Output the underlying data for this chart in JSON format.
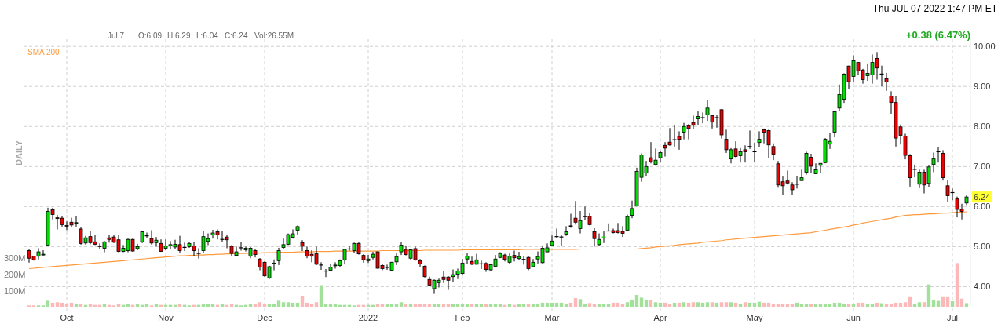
{
  "chart_data": {
    "type": "candlestick",
    "categories": [
      null,
      null,
      null,
      null,
      null,
      null,
      null,
      null,
      "Oct",
      null,
      null,
      null,
      null,
      null,
      null,
      null,
      null,
      null,
      null,
      null,
      null,
      null,
      null,
      null,
      null,
      null,
      null,
      null,
      null,
      "Nov",
      null,
      null,
      null,
      null,
      null,
      null,
      null,
      null,
      null,
      null,
      null,
      null,
      null,
      null,
      null,
      null,
      null,
      null,
      null,
      null,
      "Dec",
      null,
      null,
      null,
      null,
      null,
      null,
      null,
      null,
      null,
      null,
      null,
      null,
      null,
      null,
      null,
      null,
      null,
      null,
      null,
      null,
      null,
      "2022",
      null,
      null,
      null,
      null,
      null,
      null,
      null,
      null,
      null,
      null,
      null,
      null,
      null,
      null,
      null,
      null,
      null,
      null,
      null,
      "Feb",
      null,
      null,
      null,
      null,
      null,
      null,
      null,
      null,
      null,
      null,
      null,
      null,
      null,
      null,
      null,
      null,
      null,
      null,
      "Mar",
      null,
      null,
      null,
      null,
      null,
      null,
      null,
      null,
      null,
      null,
      null,
      null,
      null,
      null,
      null,
      null,
      null,
      null,
      null,
      null,
      null,
      null,
      "Apr",
      null,
      null,
      null,
      null,
      null,
      null,
      null,
      null,
      null,
      null,
      null,
      null,
      null,
      null,
      null,
      null,
      null,
      null,
      null,
      "May",
      null,
      null,
      null,
      null,
      null,
      null,
      null,
      null,
      null,
      null,
      null,
      null,
      null,
      null,
      null,
      null,
      null,
      null,
      null,
      null,
      "Jun",
      null,
      null,
      null,
      null,
      null,
      null,
      null,
      null,
      null,
      null,
      null,
      null,
      null,
      null,
      null,
      null,
      null,
      null,
      null,
      null,
      "Jul",
      null,
      null,
      null
    ],
    "colors": [
      "#ee0000",
      "#ee0000",
      "#00dd00",
      "#00dd00",
      "#00dd00",
      "#ee0000",
      "#ee0000",
      "#ee0000",
      "#ee0000",
      "#ee0000",
      "#00dd00",
      "#ee0000",
      "#00dd00",
      "#ee0000",
      "#ee0000",
      "#ee0000",
      "#00dd00",
      "#ee0000",
      "#ee0000",
      "#ee0000",
      "#00dd00",
      "#00dd00",
      "#ee0000",
      "#00dd00",
      "#00dd00",
      "#000000",
      "#ee0000",
      "#00dd00",
      "#ee0000",
      "#00dd00",
      "#00dd00",
      "#00dd00",
      "#ee0000",
      "#000000",
      "#00dd00",
      "#ee0000",
      "#000000",
      "#00dd00",
      "#00dd00",
      "#00dd00",
      "#ee0000",
      "#000000",
      "#ee0000",
      "#ee0000",
      "#00dd00",
      "#000000",
      "#00dd00",
      "#00dd00",
      "#ee0000",
      "#ee0000",
      "#ee0000",
      "#00dd00",
      "#00dd00",
      "#00dd00",
      "#00dd00",
      "#00dd00",
      "#00dd00",
      "#00dd00",
      "#ee0000",
      "#ee0000",
      "#ee0000",
      "#ee0000",
      "#000000",
      "#000000",
      "#00dd00",
      "#00dd00",
      "#00dd00",
      "#00dd00",
      "#000000",
      "#00dd00",
      "#ee0000",
      "#ee0000",
      "#00dd00",
      "#00dd00",
      "#ee0000",
      "#ee0000",
      "#000000",
      "#00dd00",
      "#00dd00",
      "#00dd00",
      "#ee0000",
      "#00dd00",
      "#ee0000",
      "#ee0000",
      "#ee0000",
      "#ee0000",
      "#00dd00",
      "#00dd00",
      "#ee0000",
      "#ee0000",
      "#00dd00",
      "#00dd00",
      "#00dd00",
      "#00dd00",
      "#ee0000",
      "#00dd00",
      "#000000",
      "#ee0000",
      "#00dd00",
      "#00dd00",
      "#00dd00",
      "#ee0000",
      "#00dd00",
      "#ee0000",
      "#00dd00",
      "#000000",
      "#ee0000",
      "#00dd00",
      "#00dd00",
      "#00dd00",
      "#00dd00",
      "#00dd00",
      "#000000",
      "#000000",
      "#00dd00",
      "#ee0000",
      "#ee0000",
      "#00dd00",
      "#000000",
      "#ee0000",
      "#ee0000",
      "#00dd00",
      "#00dd00",
      "#000000",
      "#ee0000",
      "#ee0000",
      "#ee0000",
      "#00dd00",
      "#00dd00",
      "#00dd00",
      "#00dd00",
      "#00dd00",
      "#ee0000",
      "#00dd00",
      "#00dd00",
      "#ee0000",
      "#ee0000",
      "#000000",
      "#ee0000",
      "#00dd00",
      "#ee0000",
      "#ee0000",
      "#00dd00",
      "#000000",
      "#00dd00",
      "#ee0000",
      "#000000",
      "#ee0000",
      "#ee0000",
      "#00dd00",
      "#ee0000",
      "#00dd00",
      "#ee0000",
      "#000000",
      "#000000",
      "#00dd00",
      "#ee0000",
      "#ee0000",
      "#ee0000",
      "#ee0000",
      "#ee0000",
      "#ee0000",
      "#ee0000",
      "#000000",
      "#00dd00",
      "#00dd00",
      "#ee0000",
      "#00dd00",
      "#00dd00",
      "#00dd00",
      "#00dd00",
      "#00dd00",
      "#00dd00",
      "#00dd00",
      "#ee0000",
      "#00dd00",
      "#ee0000",
      "#ee0000",
      "#00dd00",
      "#00dd00",
      "#ee0000",
      "#000000",
      "#ee0000",
      "#ee0000",
      "#ee0000",
      "#ee0000",
      "#ee0000",
      "#ee0000",
      "#000000",
      "#00dd00",
      "#ee0000",
      "#00dd00",
      "#00dd00",
      "#000000",
      "#ee0000",
      "#ee0000",
      "#000000",
      "#ee0000",
      "#ee0000",
      "#00dd00"
    ],
    "ohlc": [
      [
        4.9,
        4.94,
        4.6,
        4.71
      ],
      [
        4.76,
        4.77,
        4.65,
        4.67
      ],
      [
        4.76,
        4.96,
        4.68,
        4.87
      ],
      [
        4.8,
        4.91,
        4.78,
        4.81
      ],
      [
        5.04,
        5.97,
        5.01,
        5.88
      ],
      [
        5.92,
        5.97,
        5.68,
        5.8
      ],
      [
        5.72,
        5.79,
        5.43,
        5.71
      ],
      [
        5.71,
        5.76,
        5.5,
        5.55
      ],
      [
        5.53,
        5.63,
        5.41,
        5.52
      ],
      [
        5.61,
        5.72,
        5.48,
        5.54
      ],
      [
        5.59,
        5.77,
        5.5,
        5.6
      ],
      [
        5.44,
        5.48,
        5.05,
        5.08
      ],
      [
        5.09,
        5.27,
        5.05,
        5.22
      ],
      [
        5.25,
        5.38,
        5.06,
        5.1
      ],
      [
        5.12,
        5.3,
        5.04,
        5.06
      ],
      [
        5.02,
        5.08,
        4.94,
        5.01
      ],
      [
        4.96,
        5.14,
        4.86,
        5.12
      ],
      [
        5.22,
        5.3,
        5.1,
        5.18
      ],
      [
        5.24,
        5.29,
        5.09,
        5.11
      ],
      [
        5.17,
        5.3,
        4.86,
        4.88
      ],
      [
        4.88,
        5.04,
        4.86,
        4.96
      ],
      [
        4.9,
        5.2,
        4.86,
        5.18
      ],
      [
        5.18,
        5.2,
        4.87,
        4.89
      ],
      [
        4.95,
        5.07,
        4.91,
        5.0
      ],
      [
        5.12,
        5.4,
        5.09,
        5.37
      ],
      [
        5.27,
        5.35,
        5.22,
        5.27
      ],
      [
        5.2,
        5.41,
        5.05,
        5.09
      ],
      [
        5.1,
        5.24,
        5.0,
        5.16
      ],
      [
        5.08,
        5.18,
        4.87,
        4.88
      ],
      [
        4.96,
        5.18,
        4.91,
        5.02
      ],
      [
        5.02,
        5.14,
        4.94,
        5.05
      ],
      [
        4.99,
        5.17,
        4.94,
        5.06
      ],
      [
        5.05,
        5.27,
        4.84,
        4.9
      ],
      [
        4.98,
        5.1,
        4.89,
        4.98
      ],
      [
        5.0,
        5.12,
        4.97,
        5.08
      ],
      [
        5.02,
        5.12,
        4.76,
        4.9
      ],
      [
        4.83,
        4.96,
        4.7,
        4.83
      ],
      [
        4.9,
        5.39,
        4.84,
        5.25
      ],
      [
        5.13,
        5.33,
        5.04,
        5.2
      ],
      [
        5.29,
        5.42,
        5.2,
        5.34
      ],
      [
        5.37,
        5.43,
        5.18,
        5.29
      ],
      [
        5.18,
        5.4,
        5.12,
        5.18
      ],
      [
        5.24,
        5.3,
        4.96,
        5.17
      ],
      [
        5.01,
        5.04,
        4.76,
        4.83
      ],
      [
        4.78,
        5.0,
        4.76,
        4.87
      ],
      [
        4.97,
        5.12,
        4.9,
        4.97
      ],
      [
        4.92,
        5.0,
        4.88,
        4.96
      ],
      [
        4.76,
        4.99,
        4.71,
        4.96
      ],
      [
        4.9,
        4.94,
        4.73,
        4.8
      ],
      [
        4.69,
        4.71,
        4.41,
        4.49
      ],
      [
        4.61,
        4.63,
        4.25,
        4.27
      ],
      [
        4.22,
        4.52,
        4.19,
        4.5
      ],
      [
        4.58,
        4.68,
        4.41,
        4.59
      ],
      [
        4.65,
        4.97,
        4.54,
        4.9
      ],
      [
        4.98,
        5.2,
        4.93,
        5.05
      ],
      [
        5.06,
        5.33,
        5.04,
        5.3
      ],
      [
        5.23,
        5.43,
        5.2,
        5.32
      ],
      [
        5.41,
        5.53,
        5.3,
        5.5
      ],
      [
        5.1,
        5.16,
        4.89,
        5.01
      ],
      [
        4.9,
        5.0,
        4.71,
        4.76
      ],
      [
        4.81,
        4.91,
        4.61,
        4.76
      ],
      [
        4.82,
        5.0,
        4.54,
        4.56
      ],
      [
        4.54,
        4.61,
        4.42,
        4.54
      ],
      [
        4.39,
        4.44,
        4.24,
        4.39
      ],
      [
        4.41,
        4.57,
        4.39,
        4.49
      ],
      [
        4.53,
        4.61,
        4.45,
        4.54
      ],
      [
        4.53,
        4.68,
        4.5,
        4.65
      ],
      [
        4.67,
        4.94,
        4.57,
        4.93
      ],
      [
        4.94,
        5.02,
        4.9,
        4.94
      ],
      [
        4.9,
        5.1,
        4.84,
        5.08
      ],
      [
        5.08,
        5.12,
        4.8,
        4.82
      ],
      [
        4.78,
        4.81,
        4.6,
        4.67
      ],
      [
        4.65,
        4.79,
        4.59,
        4.69
      ],
      [
        4.73,
        4.87,
        4.68,
        4.81
      ],
      [
        4.87,
        4.88,
        4.45,
        4.46
      ],
      [
        4.53,
        4.57,
        4.41,
        4.45
      ],
      [
        4.48,
        4.55,
        4.42,
        4.48
      ],
      [
        4.41,
        4.62,
        4.38,
        4.61
      ],
      [
        4.62,
        4.83,
        4.54,
        4.75
      ],
      [
        4.87,
        5.12,
        4.79,
        5.04
      ],
      [
        4.93,
        5.03,
        4.78,
        4.8
      ],
      [
        4.71,
        4.94,
        4.68,
        4.92
      ],
      [
        4.95,
        5.0,
        4.65,
        4.67
      ],
      [
        4.65,
        4.69,
        4.5,
        4.57
      ],
      [
        4.51,
        4.53,
        4.23,
        4.25
      ],
      [
        4.18,
        4.25,
        4.01,
        4.04
      ],
      [
        3.95,
        4.18,
        3.82,
        4.16
      ],
      [
        4.1,
        4.2,
        3.98,
        4.16
      ],
      [
        4.24,
        4.38,
        4.09,
        4.18
      ],
      [
        4.24,
        4.26,
        3.92,
        4.16
      ],
      [
        4.25,
        4.43,
        4.12,
        4.3
      ],
      [
        4.31,
        4.45,
        4.19,
        4.39
      ],
      [
        4.33,
        4.69,
        4.3,
        4.59
      ],
      [
        4.69,
        4.83,
        4.57,
        4.76
      ],
      [
        4.63,
        4.75,
        4.54,
        4.56
      ],
      [
        4.56,
        4.82,
        4.55,
        4.67
      ],
      [
        4.57,
        4.65,
        4.44,
        4.57
      ],
      [
        4.58,
        4.61,
        4.37,
        4.43
      ],
      [
        4.42,
        4.57,
        4.4,
        4.55
      ],
      [
        4.51,
        4.79,
        4.48,
        4.69
      ],
      [
        4.73,
        4.86,
        4.71,
        4.83
      ],
      [
        4.79,
        4.82,
        4.63,
        4.68
      ],
      [
        4.61,
        4.83,
        4.56,
        4.76
      ],
      [
        4.78,
        4.9,
        4.63,
        4.72
      ],
      [
        4.7,
        4.87,
        4.66,
        4.75
      ],
      [
        4.68,
        4.76,
        4.55,
        4.68
      ],
      [
        4.73,
        4.76,
        4.41,
        4.45
      ],
      [
        4.5,
        4.69,
        4.48,
        4.61
      ],
      [
        4.69,
        4.88,
        4.58,
        4.75
      ],
      [
        4.6,
        5.03,
        4.58,
        4.96
      ],
      [
        4.87,
        5.08,
        4.86,
        4.97
      ],
      [
        5.03,
        5.28,
        5.02,
        5.14
      ],
      [
        5.25,
        5.45,
        5.22,
        5.25
      ],
      [
        5.24,
        5.29,
        5.03,
        5.24
      ],
      [
        5.31,
        5.51,
        5.27,
        5.37
      ],
      [
        5.52,
        5.82,
        5.47,
        5.51
      ],
      [
        5.71,
        6.14,
        5.55,
        5.61
      ],
      [
        5.45,
        5.89,
        5.33,
        5.65
      ],
      [
        5.75,
        6.0,
        5.66,
        5.75
      ],
      [
        5.76,
        5.85,
        5.53,
        5.55
      ],
      [
        5.37,
        5.46,
        5.0,
        5.2
      ],
      [
        5.05,
        5.33,
        5.02,
        5.18
      ],
      [
        5.24,
        5.4,
        5.09,
        5.24
      ],
      [
        5.39,
        5.58,
        5.39,
        5.39
      ],
      [
        5.4,
        5.45,
        5.33,
        5.35
      ],
      [
        5.4,
        5.59,
        5.33,
        5.35
      ],
      [
        5.38,
        5.51,
        5.24,
        5.33
      ],
      [
        5.41,
        5.8,
        5.39,
        5.75
      ],
      [
        5.78,
        6.15,
        5.71,
        5.95
      ],
      [
        6.02,
        6.97,
        6.0,
        6.88
      ],
      [
        6.73,
        7.33,
        6.62,
        7.29
      ],
      [
        6.84,
        7.14,
        6.77,
        7.0
      ],
      [
        7.22,
        7.61,
        7.08,
        7.12
      ],
      [
        7.05,
        7.45,
        7.02,
        7.16
      ],
      [
        7.22,
        7.4,
        7.1,
        7.35
      ],
      [
        7.53,
        7.61,
        7.25,
        7.46
      ],
      [
        7.61,
        7.96,
        7.52,
        7.54
      ],
      [
        7.67,
        8.04,
        7.5,
        7.67
      ],
      [
        7.75,
        7.88,
        7.42,
        7.68
      ],
      [
        7.86,
        8.09,
        7.68,
        8.0
      ],
      [
        8.02,
        8.06,
        7.68,
        7.95
      ],
      [
        8.1,
        8.27,
        7.94,
        8.03
      ],
      [
        8.19,
        8.39,
        8.03,
        8.25
      ],
      [
        8.22,
        8.35,
        8.08,
        8.22
      ],
      [
        8.29,
        8.67,
        8.14,
        8.46
      ],
      [
        8.27,
        8.29,
        7.95,
        8.11
      ],
      [
        8.22,
        8.29,
        7.97,
        8.22
      ],
      [
        8.42,
        8.43,
        7.7,
        7.79
      ],
      [
        7.68,
        7.92,
        7.34,
        7.42
      ],
      [
        7.19,
        7.46,
        7.08,
        7.42
      ],
      [
        7.44,
        7.63,
        7.23,
        7.25
      ],
      [
        7.27,
        7.46,
        7.1,
        7.37
      ],
      [
        7.42,
        7.53,
        7.1,
        7.37
      ],
      [
        7.5,
        7.9,
        7.44,
        7.5
      ],
      [
        7.37,
        7.6,
        7.12,
        7.37
      ],
      [
        7.6,
        7.88,
        7.49,
        7.68
      ],
      [
        7.92,
        7.95,
        7.58,
        7.86
      ],
      [
        7.9,
        7.92,
        7.22,
        7.54
      ],
      [
        7.5,
        7.58,
        7.16,
        7.31
      ],
      [
        7.07,
        7.14,
        6.47,
        6.54
      ],
      [
        6.62,
        6.75,
        6.3,
        6.52
      ],
      [
        6.64,
        6.9,
        6.55,
        6.59
      ],
      [
        6.54,
        6.61,
        6.3,
        6.42
      ],
      [
        6.56,
        6.76,
        6.45,
        6.56
      ],
      [
        6.65,
        6.92,
        6.65,
        6.72
      ],
      [
        6.86,
        7.37,
        6.8,
        7.33
      ],
      [
        7.23,
        7.32,
        6.85,
        7.01
      ],
      [
        6.82,
        7.08,
        6.82,
        6.92
      ],
      [
        7.03,
        7.08,
        6.83,
        7.08
      ],
      [
        7.1,
        7.71,
        7.08,
        7.68
      ],
      [
        7.56,
        7.84,
        7.44,
        7.63
      ],
      [
        7.86,
        8.39,
        7.73,
        8.37
      ],
      [
        8.46,
        9.05,
        8.38,
        8.8
      ],
      [
        8.68,
        9.33,
        8.59,
        9.31
      ],
      [
        9.51,
        9.52,
        8.94,
        9.12
      ],
      [
        9.25,
        9.78,
        9.1,
        9.64
      ],
      [
        9.6,
        9.6,
        9.28,
        9.39
      ],
      [
        9.41,
        9.44,
        9.07,
        9.17
      ],
      [
        9.27,
        9.56,
        9.14,
        9.33
      ],
      [
        9.29,
        9.8,
        9.07,
        9.6
      ],
      [
        9.7,
        9.86,
        9.17,
        9.46
      ],
      [
        9.31,
        9.52,
        9.0,
        9.31
      ],
      [
        9.19,
        9.34,
        8.89,
        9.11
      ],
      [
        8.76,
        8.88,
        8.32,
        8.6
      ],
      [
        8.6,
        8.76,
        7.5,
        7.71
      ],
      [
        7.99,
        8.05,
        7.55,
        7.78
      ],
      [
        7.76,
        7.82,
        7.18,
        7.28
      ],
      [
        7.27,
        7.31,
        6.5,
        6.72
      ],
      [
        6.93,
        7.05,
        6.73,
        6.93
      ],
      [
        6.56,
        6.92,
        6.46,
        6.86
      ],
      [
        6.86,
        6.92,
        6.33,
        6.54
      ],
      [
        6.58,
        7.04,
        6.49,
        6.99
      ],
      [
        7.05,
        7.35,
        6.86,
        7.19
      ],
      [
        7.37,
        7.48,
        7.1,
        7.37
      ],
      [
        7.33,
        7.41,
        6.65,
        6.72
      ],
      [
        6.52,
        6.67,
        6.12,
        6.27
      ],
      [
        6.35,
        6.45,
        6.16,
        6.35
      ],
      [
        6.19,
        6.25,
        5.73,
        5.93
      ],
      [
        5.93,
        6.07,
        5.68,
        5.88
      ],
      [
        6.09,
        6.29,
        6.04,
        6.24
      ]
    ],
    "series": [
      {
        "type": "bar",
        "axis": "y2",
        "values": [
          13,
          13,
          13,
          13,
          41,
          29,
          32,
          29,
          24,
          29,
          24,
          24,
          16,
          19,
          16,
          16,
          19,
          16,
          13,
          22,
          16,
          19,
          16,
          19,
          16,
          19,
          13,
          24,
          16,
          16,
          16,
          16,
          19,
          16,
          13,
          16,
          16,
          24,
          19,
          19,
          16,
          24,
          16,
          19,
          16,
          13,
          16,
          19,
          24,
          32,
          24,
          22,
          22,
          41,
          32,
          32,
          29,
          29,
          71,
          29,
          24,
          32,
          136,
          24,
          19,
          19,
          16,
          16,
          16,
          13,
          16,
          16,
          16,
          16,
          24,
          19,
          19,
          19,
          24,
          32,
          22,
          19,
          19,
          24,
          24,
          24,
          22,
          22,
          22,
          24,
          22,
          19,
          22,
          24,
          22,
          24,
          19,
          19,
          24,
          24,
          19,
          16,
          19,
          16,
          22,
          19,
          22,
          19,
          24,
          29,
          29,
          29,
          29,
          29,
          24,
          29,
          57,
          51,
          24,
          27,
          19,
          22,
          22,
          19,
          29,
          29,
          22,
          32,
          48,
          76,
          60,
          43,
          44,
          32,
          29,
          29,
          22,
          29,
          29,
          32,
          29,
          32,
          32,
          29,
          32,
          32,
          29,
          32,
          32,
          32,
          29,
          22,
          32,
          29,
          29,
          35,
          29,
          29,
          22,
          24,
          24,
          22,
          24,
          29,
          22,
          19,
          22,
          22,
          24,
          24,
          24,
          29,
          29,
          24,
          24,
          24,
          29,
          29,
          24,
          24,
          29,
          26,
          24,
          24,
          29,
          29,
          32,
          63,
          22,
          32,
          32,
          140,
          48,
          40,
          63,
          63,
          38,
          270,
          54,
          26.55
        ],
        "colors": [
          "#fbb9b9",
          "#fbb9b9",
          "#a3e09b",
          "#a3e09b",
          "#a3e09b",
          "#fbb9b9",
          "#fbb9b9",
          "#fbb9b9",
          "#fbb9b9",
          "#fbb9b9",
          "#a3e09b",
          "#fbb9b9",
          "#a3e09b",
          "#fbb9b9",
          "#fbb9b9",
          "#fbb9b9",
          "#a3e09b",
          "#fbb9b9",
          "#fbb9b9",
          "#fbb9b9",
          "#a3e09b",
          "#a3e09b",
          "#fbb9b9",
          "#a3e09b",
          "#a3e09b",
          "#a3e09b",
          "#fbb9b9",
          "#a3e09b",
          "#fbb9b9",
          "#a3e09b",
          "#a3e09b",
          "#a3e09b",
          "#fbb9b9",
          "#a3e09b",
          "#a3e09b",
          "#fbb9b9",
          "#a3e09b",
          "#a3e09b",
          "#a3e09b",
          "#a3e09b",
          "#fbb9b9",
          "#a3e09b",
          "#fbb9b9",
          "#fbb9b9",
          "#a3e09b",
          "#a3e09b",
          "#a3e09b",
          "#a3e09b",
          "#fbb9b9",
          "#fbb9b9",
          "#fbb9b9",
          "#a3e09b",
          "#a3e09b",
          "#a3e09b",
          "#a3e09b",
          "#a3e09b",
          "#a3e09b",
          "#a3e09b",
          "#fbb9b9",
          "#fbb9b9",
          "#fbb9b9",
          "#fbb9b9",
          "#a3e09b",
          "#a3e09b",
          "#a3e09b",
          "#a3e09b",
          "#a3e09b",
          "#a3e09b",
          "#a3e09b",
          "#a3e09b",
          "#fbb9b9",
          "#fbb9b9",
          "#a3e09b",
          "#a3e09b",
          "#fbb9b9",
          "#fbb9b9",
          "#a3e09b",
          "#a3e09b",
          "#a3e09b",
          "#a3e09b",
          "#fbb9b9",
          "#a3e09b",
          "#fbb9b9",
          "#fbb9b9",
          "#fbb9b9",
          "#fbb9b9",
          "#a3e09b",
          "#a3e09b",
          "#fbb9b9",
          "#fbb9b9",
          "#a3e09b",
          "#a3e09b",
          "#a3e09b",
          "#a3e09b",
          "#fbb9b9",
          "#a3e09b",
          "#a3e09b",
          "#fbb9b9",
          "#a3e09b",
          "#a3e09b",
          "#a3e09b",
          "#fbb9b9",
          "#a3e09b",
          "#fbb9b9",
          "#a3e09b",
          "#a3e09b",
          "#fbb9b9",
          "#a3e09b",
          "#a3e09b",
          "#a3e09b",
          "#a3e09b",
          "#a3e09b",
          "#a3e09b",
          "#a3e09b",
          "#a3e09b",
          "#fbb9b9",
          "#fbb9b9",
          "#a3e09b",
          "#a3e09b",
          "#fbb9b9",
          "#fbb9b9",
          "#a3e09b",
          "#a3e09b",
          "#a3e09b",
          "#fbb9b9",
          "#fbb9b9",
          "#fbb9b9",
          "#a3e09b",
          "#a3e09b",
          "#a3e09b",
          "#a3e09b",
          "#a3e09b",
          "#fbb9b9",
          "#a3e09b",
          "#a3e09b",
          "#fbb9b9",
          "#fbb9b9",
          "#a3e09b",
          "#fbb9b9",
          "#a3e09b",
          "#fbb9b9",
          "#fbb9b9",
          "#a3e09b",
          "#a3e09b",
          "#a3e09b",
          "#fbb9b9",
          "#a3e09b",
          "#fbb9b9",
          "#fbb9b9",
          "#a3e09b",
          "#fbb9b9",
          "#a3e09b",
          "#fbb9b9",
          "#a3e09b",
          "#a3e09b",
          "#a3e09b",
          "#fbb9b9",
          "#fbb9b9",
          "#fbb9b9",
          "#fbb9b9",
          "#fbb9b9",
          "#fbb9b9",
          "#fbb9b9",
          "#a3e09b",
          "#a3e09b",
          "#a3e09b",
          "#fbb9b9",
          "#a3e09b",
          "#a3e09b",
          "#a3e09b",
          "#a3e09b",
          "#a3e09b",
          "#a3e09b",
          "#a3e09b",
          "#fbb9b9",
          "#a3e09b",
          "#fbb9b9",
          "#fbb9b9",
          "#a3e09b",
          "#a3e09b",
          "#fbb9b9",
          "#a3e09b",
          "#fbb9b9",
          "#fbb9b9",
          "#fbb9b9",
          "#fbb9b9",
          "#fbb9b9",
          "#fbb9b9",
          "#a3e09b",
          "#a3e09b",
          "#fbb9b9",
          "#a3e09b",
          "#a3e09b",
          "#a3e09b",
          "#fbb9b9",
          "#fbb9b9",
          "#a3e09b",
          "#fbb9b9",
          "#fbb9b9",
          "#a3e09b"
        ]
      },
      {
        "type": "line",
        "name": "SMA 200",
        "color": "#ff9a3c",
        "values": [
          4.45,
          4.46,
          4.47,
          4.48,
          4.49,
          4.5,
          4.51,
          4.52,
          4.53,
          4.54,
          4.55,
          4.56,
          4.57,
          4.58,
          4.59,
          4.6,
          4.61,
          4.62,
          4.63,
          4.64,
          4.65,
          4.66,
          4.67,
          4.68,
          4.69,
          4.7,
          4.71,
          4.72,
          4.73,
          4.74,
          4.75,
          4.76,
          4.77,
          4.77,
          4.78,
          4.78,
          4.79,
          4.79,
          4.8,
          4.8,
          4.81,
          4.81,
          4.82,
          4.82,
          4.83,
          4.83,
          4.83,
          4.84,
          4.84,
          4.84,
          4.85,
          4.85,
          4.85,
          4.86,
          4.86,
          4.86,
          4.86,
          4.87,
          4.87,
          4.87,
          4.87,
          4.88,
          4.88,
          4.88,
          4.88,
          4.89,
          4.89,
          4.89,
          4.89,
          4.89,
          4.89,
          4.89,
          4.89,
          4.89,
          4.89,
          4.9,
          4.9,
          4.9,
          4.9,
          4.9,
          4.9,
          4.9,
          4.9,
          4.9,
          4.91,
          4.91,
          4.91,
          4.91,
          4.91,
          4.91,
          4.91,
          4.91,
          4.92,
          4.92,
          4.92,
          4.92,
          4.92,
          4.92,
          4.92,
          4.92,
          4.92,
          4.92,
          4.92,
          4.92,
          4.92,
          4.93,
          4.93,
          4.93,
          4.93,
          4.93,
          4.93,
          4.93,
          4.93,
          4.93,
          4.93,
          4.93,
          4.93,
          4.94,
          4.94,
          4.94,
          4.94,
          4.94,
          4.94,
          4.94,
          4.94,
          4.94,
          4.94,
          4.94,
          4.94,
          4.94,
          4.95,
          4.96,
          4.97,
          4.99,
          5.0,
          5.01,
          5.02,
          5.03,
          5.05,
          5.06,
          5.07,
          5.08,
          5.09,
          5.11,
          5.12,
          5.13,
          5.14,
          5.15,
          5.17,
          5.18,
          5.19,
          5.2,
          5.21,
          5.22,
          5.23,
          5.24,
          5.25,
          5.26,
          5.27,
          5.28,
          5.29,
          5.3,
          5.31,
          5.32,
          5.33,
          5.34,
          5.35,
          5.37,
          5.39,
          5.41,
          5.43,
          5.45,
          5.47,
          5.49,
          5.51,
          5.54,
          5.56,
          5.59,
          5.61,
          5.63,
          5.65,
          5.67,
          5.69,
          5.71,
          5.74,
          5.76,
          5.78,
          5.79,
          5.8,
          5.8,
          5.81,
          5.82,
          5.82,
          5.83,
          5.84,
          5.84,
          5.85,
          5.86,
          5.86,
          5.87
        ]
      }
    ],
    "ylim": [
      3.48,
      10.18
    ],
    "yticks": [
      {
        "value": 4,
        "label": "4.00"
      },
      {
        "value": 5,
        "label": "5.00"
      },
      {
        "value": 6,
        "label": "6.00"
      },
      {
        "value": 7,
        "label": "7.00"
      },
      {
        "value": 8,
        "label": "8.00"
      },
      {
        "value": 9,
        "label": "9.00"
      },
      {
        "value": 10,
        "label": "10.00"
      }
    ],
    "y2lim": [
      0,
      1630
    ],
    "y2ticks": [
      {
        "value": 100,
        "label": "100M"
      },
      {
        "value": 200,
        "label": "200M"
      },
      {
        "value": 300,
        "label": "300M"
      }
    ],
    "grid": true,
    "legend": "top left",
    "annotations": [
      "Thu JUL 07 2022 1:47 PM ET",
      "Jul 7",
      "O:6.09",
      "H:6.29",
      "L:6.04",
      "C:6.24",
      "Vol:26.55M",
      "+0.38 (6.47%)",
      "DAILY",
      {
        "text": "6.24",
        "y": 6.24
      }
    ]
  }
}
